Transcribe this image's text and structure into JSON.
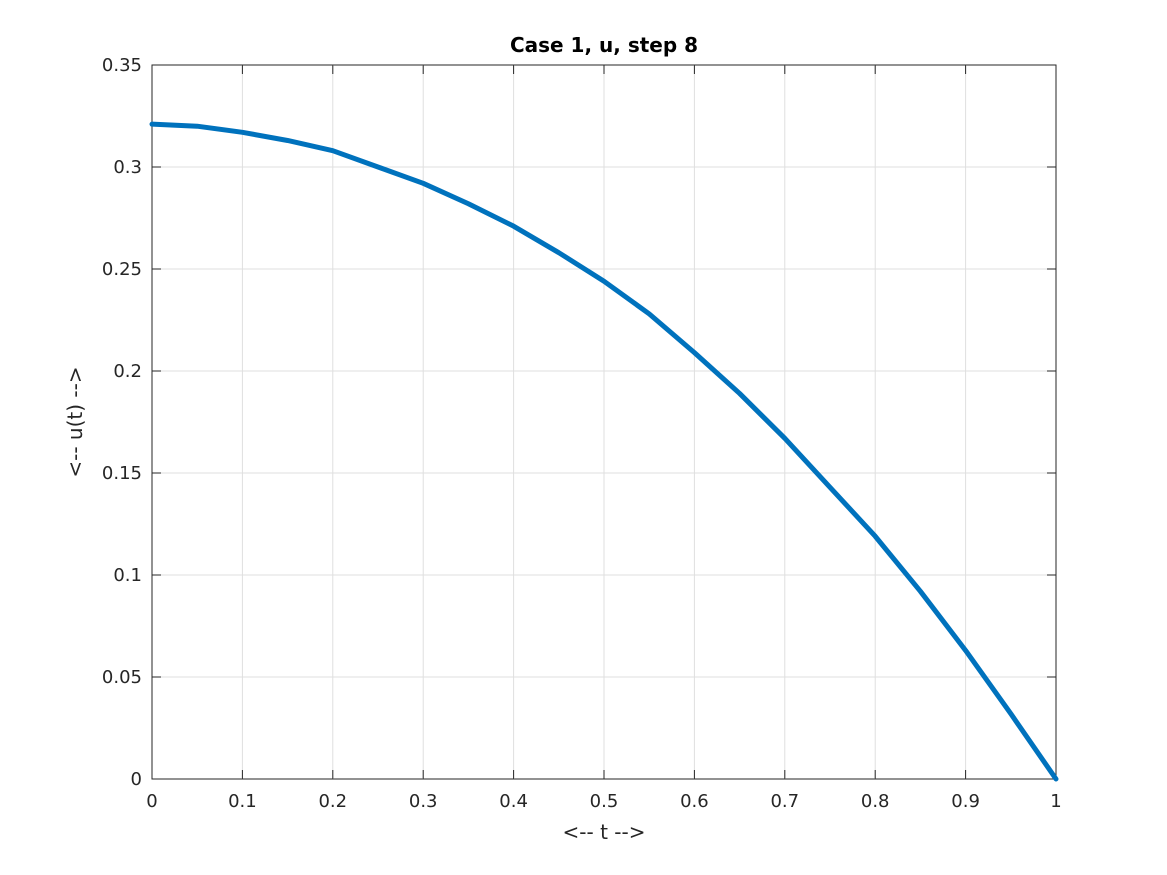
{
  "chart_data": {
    "type": "line",
    "title": "Case 1, u, step 8",
    "xlabel": "<-- t -->",
    "ylabel": "<-- u(t) -->",
    "xlim": [
      0,
      1
    ],
    "ylim": [
      0,
      0.35
    ],
    "xticks": [
      0,
      0.1,
      0.2,
      0.3,
      0.4,
      0.5,
      0.6,
      0.7,
      0.8,
      0.9,
      1
    ],
    "xtick_labels": [
      "0",
      "0.1",
      "0.2",
      "0.3",
      "0.4",
      "0.5",
      "0.6",
      "0.7",
      "0.8",
      "0.9",
      "1"
    ],
    "yticks": [
      0,
      0.05,
      0.1,
      0.15,
      0.2,
      0.25,
      0.3,
      0.35
    ],
    "ytick_labels": [
      "0",
      "0.05",
      "0.1",
      "0.15",
      "0.2",
      "0.25",
      "0.3",
      "0.35"
    ],
    "grid": true,
    "series": [
      {
        "color": "#0072BD",
        "x": [
          0,
          0.05,
          0.1,
          0.15,
          0.2,
          0.25,
          0.3,
          0.35,
          0.4,
          0.45,
          0.5,
          0.55,
          0.6,
          0.65,
          0.7,
          0.75,
          0.8,
          0.85,
          0.9,
          0.95,
          1
        ],
        "y": [
          0.321,
          0.32,
          0.317,
          0.313,
          0.308,
          0.3,
          0.292,
          0.282,
          0.271,
          0.258,
          0.244,
          0.228,
          0.209,
          0.189,
          0.167,
          0.143,
          0.119,
          0.092,
          0.063,
          0.032,
          0.0
        ]
      }
    ]
  }
}
